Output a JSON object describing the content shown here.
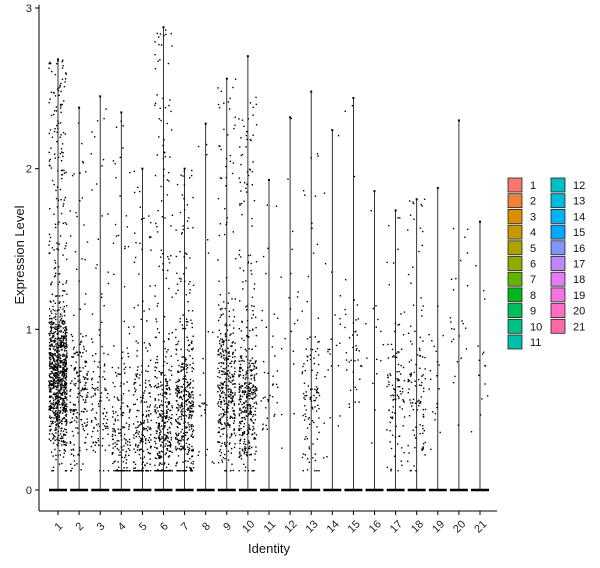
{
  "chart_data": {
    "type": "violin",
    "title": "",
    "xlabel": "Identity",
    "ylabel": "Expression Level",
    "ylim": [
      -0.12,
      3.02
    ],
    "yticks": [
      0,
      1,
      2,
      3
    ],
    "grid": false,
    "legend_position": "right",
    "categories": [
      "1",
      "2",
      "3",
      "4",
      "5",
      "6",
      "7",
      "8",
      "9",
      "10",
      "11",
      "12",
      "13",
      "14",
      "15",
      "16",
      "17",
      "18",
      "19",
      "20",
      "21"
    ],
    "colors": [
      "#F8766D",
      "#EC8239",
      "#DB8E00",
      "#C79800",
      "#AEA200",
      "#8FAA00",
      "#64B200",
      "#00B81B",
      "#00BD5C",
      "#00C085",
      "#00C1A7",
      "#00BFC4",
      "#00BADE",
      "#00B2F3",
      "#00A6FF",
      "#7F96FF",
      "#BC88FF",
      "#E07DF6",
      "#F374E0",
      "#FF6DC5",
      "#FF6AA5"
    ],
    "max_values": [
      2.68,
      2.38,
      2.45,
      2.35,
      2.0,
      2.88,
      2.0,
      2.28,
      2.56,
      2.7,
      1.93,
      2.32,
      2.48,
      2.24,
      2.44,
      1.86,
      1.74,
      1.81,
      1.88,
      2.3,
      1.67
    ],
    "points_per_group": [
      1000,
      200,
      120,
      180,
      220,
      380,
      400,
      25,
      380,
      400,
      40,
      20,
      110,
      25,
      40,
      15,
      100,
      110,
      20,
      25,
      15
    ],
    "cluster_center": [
      0.72,
      0.6,
      0.55,
      0.3,
      0.3,
      0.4,
      0.5,
      0.5,
      0.6,
      0.55,
      0.6,
      1.0,
      0.55,
      0.8,
      0.8,
      0.9,
      0.6,
      0.55,
      0.6,
      1.1,
      0.7
    ]
  }
}
